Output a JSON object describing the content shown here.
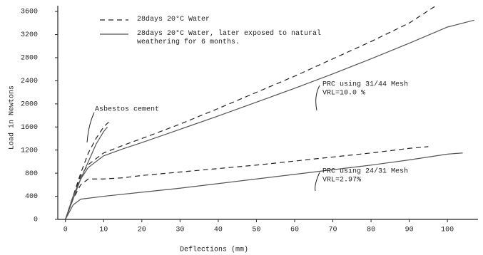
{
  "chart_data": {
    "type": "line",
    "x_label": "Deflections (mm)",
    "y_label": "Load in Newtons",
    "xlim": [
      -2,
      108
    ],
    "ylim": [
      0,
      3700
    ],
    "xticks": [
      0,
      10,
      20,
      30,
      40,
      50,
      60,
      70,
      80,
      90,
      100
    ],
    "yticks": [
      0,
      400,
      800,
      1200,
      1600,
      2000,
      2400,
      2800,
      3200,
      3600
    ],
    "series": [
      {
        "name": "28days 20°C Water",
        "color": "#222222",
        "dashed": true,
        "curves": [
          {
            "x": [
              0,
              2,
              4,
              6,
              8,
              10,
              12
            ],
            "values": [
              0,
              400,
              800,
              1150,
              1400,
              1600,
              1730
            ]
          },
          {
            "x": [
              0,
              2,
              4,
              6,
              10,
              15,
              20,
              30,
              40,
              50,
              60,
              70,
              80,
              90,
              97
            ],
            "values": [
              0,
              400,
              750,
              950,
              1150,
              1280,
              1400,
              1650,
              1920,
              2200,
              2480,
              2780,
              3080,
              3400,
              3700
            ]
          },
          {
            "x": [
              0,
              2,
              4,
              6,
              10,
              15,
              20,
              30,
              40,
              50,
              60,
              70,
              80,
              90,
              95
            ],
            "values": [
              0,
              350,
              600,
              700,
              700,
              720,
              760,
              820,
              880,
              940,
              1010,
              1080,
              1150,
              1230,
              1260
            ]
          }
        ]
      },
      {
        "name": "28days 20°C Water, later exposed to natural weathering for 6 months.",
        "color": "#555555",
        "dashed": false,
        "curves": [
          {
            "x": [
              0,
              2,
              4,
              6,
              8,
              10,
              11
            ],
            "values": [
              0,
              350,
              700,
              1000,
              1300,
              1520,
              1600
            ]
          },
          {
            "x": [
              0,
              2,
              4,
              6,
              10,
              15,
              20,
              30,
              40,
              50,
              60,
              70,
              80,
              90,
              100,
              107
            ],
            "values": [
              0,
              400,
              700,
              900,
              1100,
              1220,
              1330,
              1560,
              1790,
              2030,
              2270,
              2520,
              2780,
              3050,
              3330,
              3450
            ]
          },
          {
            "x": [
              0,
              2,
              4,
              10,
              20,
              30,
              40,
              50,
              60,
              70,
              80,
              90,
              100,
              104
            ],
            "values": [
              0,
              250,
              350,
              400,
              470,
              540,
              620,
              700,
              780,
              860,
              940,
              1030,
              1130,
              1150
            ]
          }
        ]
      }
    ],
    "annotations": [
      {
        "lines": [
          "Asbestos cement"
        ]
      },
      {
        "lines": [
          "PRC using 31/44 Mesh",
          "VRL=10.0 %"
        ]
      },
      {
        "lines": [
          "PRC using 24/31 Mesh",
          "VRL=2.97%"
        ]
      }
    ]
  }
}
